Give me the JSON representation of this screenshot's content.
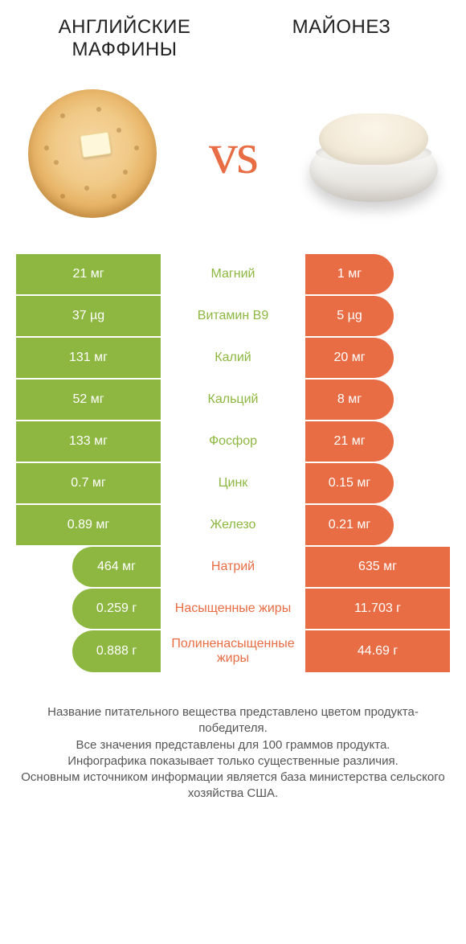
{
  "colors": {
    "green": "#8db741",
    "orange": "#e86c44"
  },
  "products": {
    "left": {
      "title": "АНГЛИЙСКИЕ МАФФИНЫ"
    },
    "right": {
      "title": "МАЙОНЕЗ"
    }
  },
  "vs_label": "vs",
  "rows": [
    {
      "nutrient": "Магний",
      "left": "21 мг",
      "right": "1 мг",
      "winner": "left"
    },
    {
      "nutrient": "Витамин B9",
      "left": "37 µg",
      "right": "5 µg",
      "winner": "left"
    },
    {
      "nutrient": "Калий",
      "left": "131 мг",
      "right": "20 мг",
      "winner": "left"
    },
    {
      "nutrient": "Кальций",
      "left": "52 мг",
      "right": "8 мг",
      "winner": "left"
    },
    {
      "nutrient": "Фосфор",
      "left": "133 мг",
      "right": "21 мг",
      "winner": "left"
    },
    {
      "nutrient": "Цинк",
      "left": "0.7 мг",
      "right": "0.15 мг",
      "winner": "left"
    },
    {
      "nutrient": "Железо",
      "left": "0.89 мг",
      "right": "0.21 мг",
      "winner": "left"
    },
    {
      "nutrient": "Натрий",
      "left": "464 мг",
      "right": "635 мг",
      "winner": "right"
    },
    {
      "nutrient": "Насыщенные жиры",
      "left": "0.259 г",
      "right": "11.703 г",
      "winner": "right"
    },
    {
      "nutrient": "Полиненасыщенные жиры",
      "left": "0.888 г",
      "right": "44.69 г",
      "winner": "right"
    }
  ],
  "footer_lines": [
    "Название питательного вещества представлено цветом продукта-победителя.",
    "Все значения представлены для 100 граммов продукта.",
    "Инфографика показывает только существенные различия.",
    "Основным источником информации является база министерства сельского хозяйства США."
  ]
}
